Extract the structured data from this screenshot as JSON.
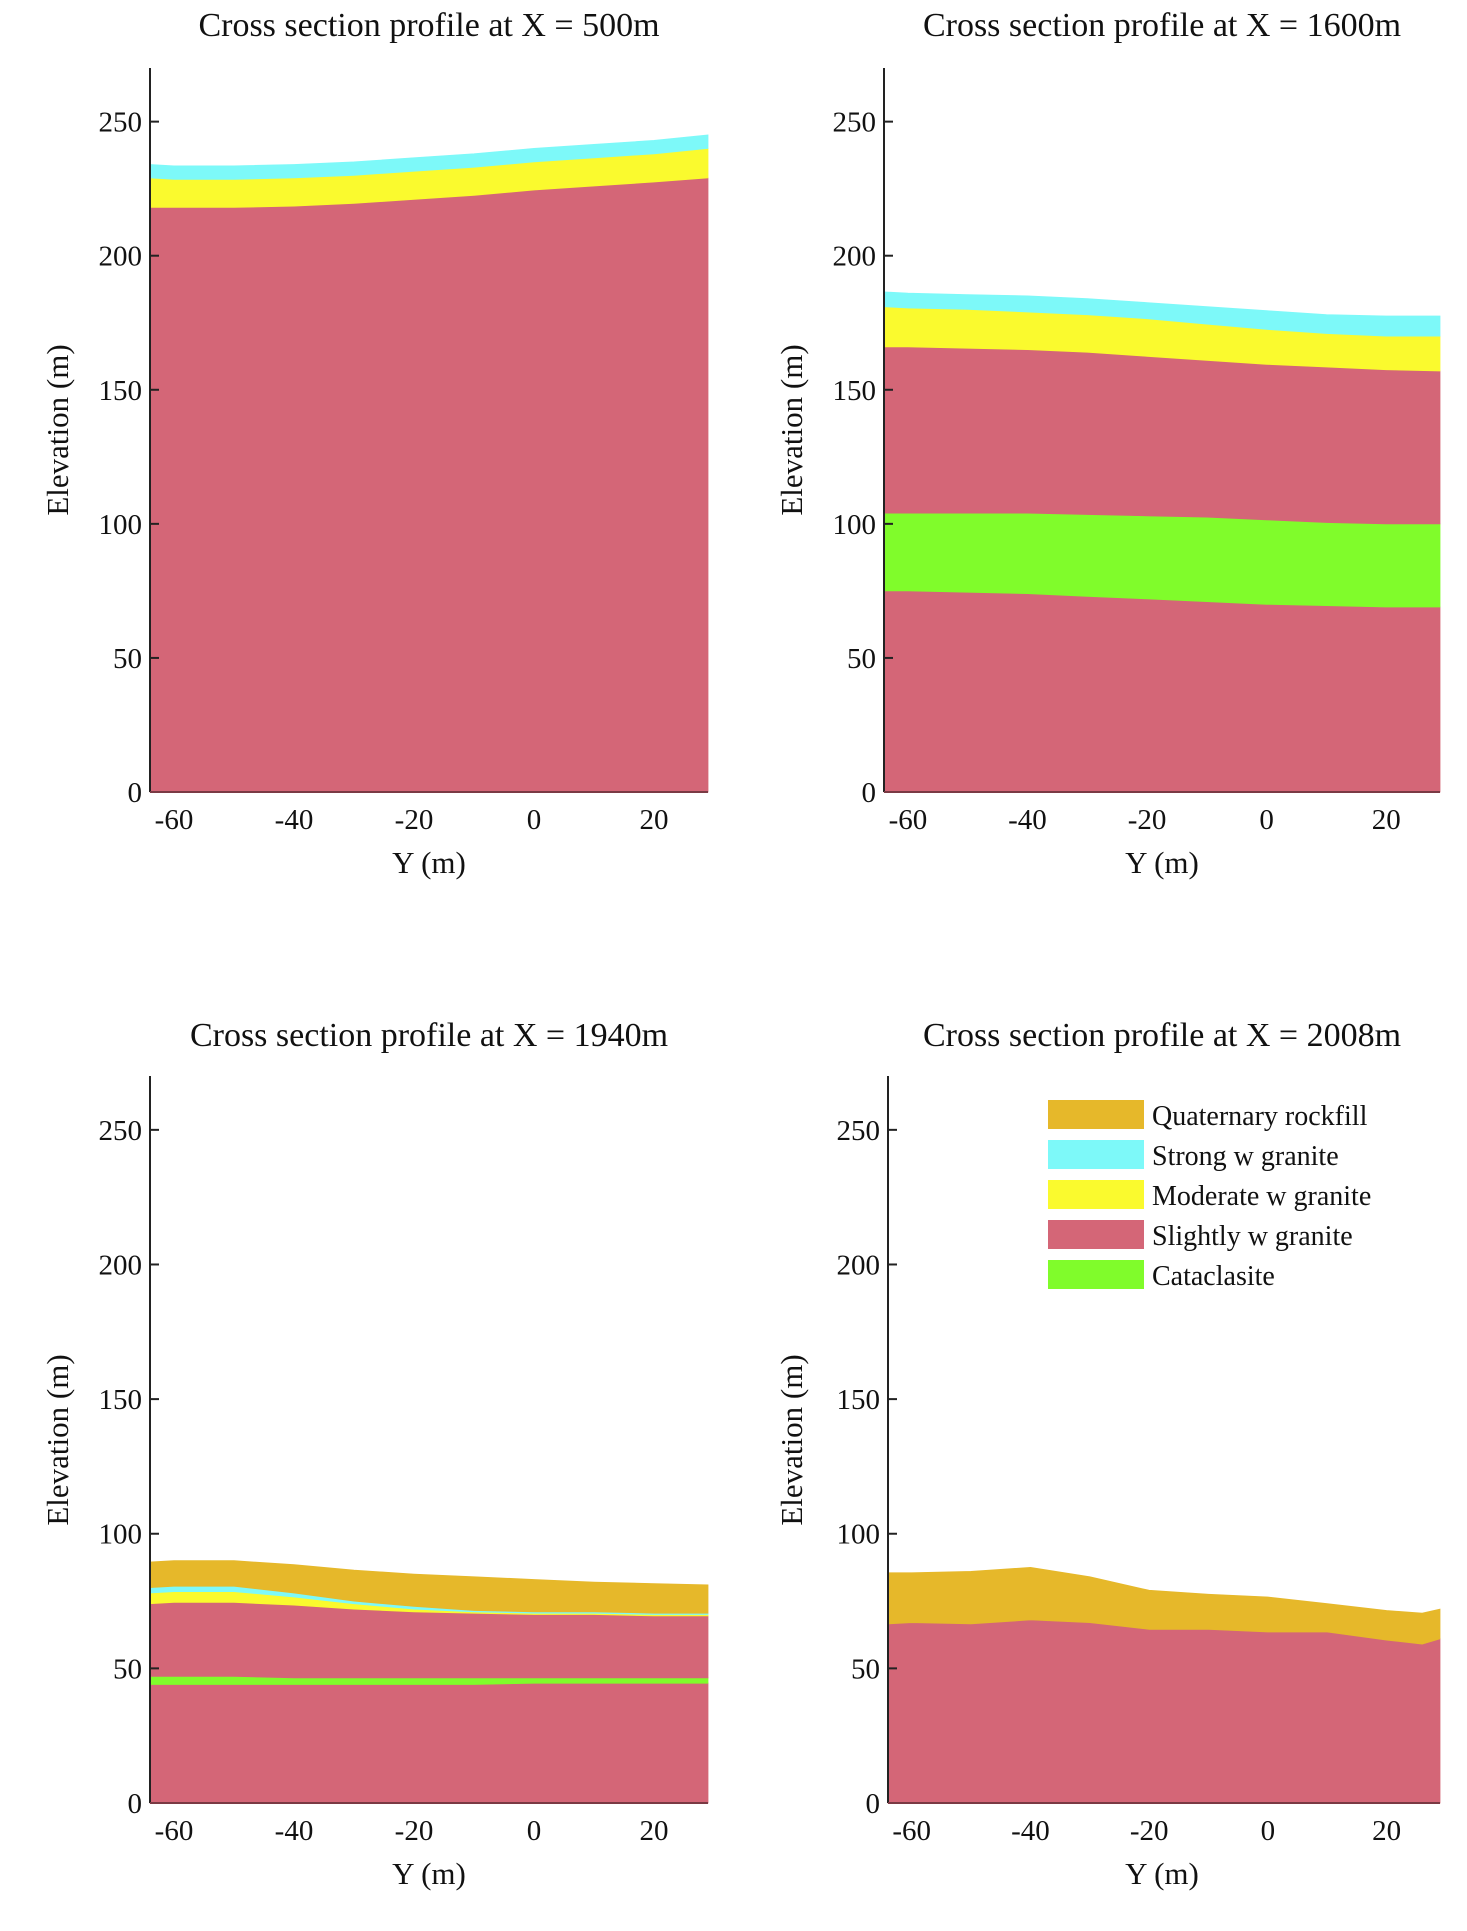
{
  "chart_data": [
    {
      "type": "area",
      "title": "Cross section profile at X = 500m",
      "xlabel": "Y (m)",
      "ylabel": "Elevation (m)",
      "xlim": [
        -64,
        29
      ],
      "ylim": [
        0,
        270
      ],
      "xticks": [
        -60,
        -40,
        -20,
        0,
        20
      ],
      "yticks": [
        0,
        50,
        100,
        150,
        200,
        250
      ],
      "grid": false,
      "x": [
        -64,
        -60,
        -50,
        -40,
        -30,
        -20,
        -10,
        0,
        10,
        20,
        29
      ],
      "layers": [
        {
          "name": "Slightly w granite",
          "bottom": [
            0,
            0,
            0,
            0,
            0,
            0,
            0,
            0,
            0,
            0,
            0
          ],
          "top": [
            218,
            218,
            218,
            218.5,
            219.5,
            221,
            222.5,
            224.5,
            226,
            227.5,
            229
          ]
        },
        {
          "name": "Moderate w granite",
          "bottom": [
            218,
            218,
            218,
            218.5,
            219.5,
            221,
            222.5,
            224.5,
            226,
            227.5,
            229
          ],
          "top": [
            229,
            228.5,
            228.5,
            229,
            230,
            231.5,
            233,
            235,
            236.5,
            238,
            240
          ]
        },
        {
          "name": "Strong w granite",
          "bottom": [
            229,
            228.5,
            228.5,
            229,
            230,
            231.5,
            233,
            235,
            236.5,
            238,
            240
          ],
          "top": [
            234,
            233.5,
            233.5,
            234,
            235,
            236.5,
            238,
            240,
            241.5,
            243,
            245
          ]
        }
      ]
    },
    {
      "type": "area",
      "title": "Cross section profile at X = 1600m",
      "xlabel": "Y (m)",
      "ylabel": "Elevation (m)",
      "xlim": [
        -64,
        29
      ],
      "ylim": [
        0,
        270
      ],
      "xticks": [
        -60,
        -40,
        -20,
        0,
        20
      ],
      "yticks": [
        0,
        50,
        100,
        150,
        200,
        250
      ],
      "grid": false,
      "x": [
        -64,
        -60,
        -50,
        -40,
        -30,
        -20,
        -10,
        0,
        10,
        20,
        29
      ],
      "layers": [
        {
          "name": "Slightly w granite",
          "bottom": [
            0,
            0,
            0,
            0,
            0,
            0,
            0,
            0,
            0,
            0,
            0
          ],
          "top": [
            75,
            75,
            74.5,
            74,
            73,
            72,
            71,
            70,
            69.5,
            69,
            69
          ]
        },
        {
          "name": "Cataclasite",
          "bottom": [
            75,
            75,
            74.5,
            74,
            73,
            72,
            71,
            70,
            69.5,
            69,
            69
          ],
          "top": [
            104,
            104,
            104,
            104,
            103.5,
            103,
            102.5,
            101.5,
            100.5,
            100,
            100
          ]
        },
        {
          "name": "Slightly w granite",
          "bottom": [
            104,
            104,
            104,
            104,
            103.5,
            103,
            102.5,
            101.5,
            100.5,
            100,
            100
          ],
          "top": [
            166,
            166,
            165.5,
            165,
            164,
            162.5,
            161,
            159.5,
            158.5,
            157.5,
            157
          ]
        },
        {
          "name": "Moderate w granite",
          "bottom": [
            166,
            166,
            165.5,
            165,
            164,
            162.5,
            161,
            159.5,
            158.5,
            157.5,
            157
          ],
          "top": [
            181,
            180.5,
            180,
            179,
            178,
            176.5,
            174.5,
            172.5,
            171,
            170,
            170
          ]
        },
        {
          "name": "Strong w granite",
          "bottom": [
            181,
            180.5,
            180,
            179,
            178,
            176.5,
            174.5,
            172.5,
            171,
            170,
            170
          ],
          "top": [
            186.5,
            186,
            185.5,
            185,
            184,
            182.5,
            181,
            179.5,
            178,
            177.5,
            177.5
          ]
        }
      ]
    },
    {
      "type": "area",
      "title": "Cross section profile at X = 1940m",
      "xlabel": "Y (m)",
      "ylabel": "Elevation (m)",
      "xlim": [
        -64,
        29
      ],
      "ylim": [
        0,
        270
      ],
      "xticks": [
        -60,
        -40,
        -20,
        0,
        20
      ],
      "yticks": [
        0,
        50,
        100,
        150,
        200,
        250
      ],
      "grid": false,
      "x": [
        -64,
        -60,
        -50,
        -40,
        -30,
        -20,
        -10,
        0,
        10,
        20,
        29
      ],
      "layers": [
        {
          "name": "Slightly w granite",
          "bottom": [
            0,
            0,
            0,
            0,
            0,
            0,
            0,
            0,
            0,
            0,
            0
          ],
          "top": [
            44,
            44,
            44,
            44,
            44,
            44,
            44,
            44.5,
            44.5,
            44.5,
            44.5
          ]
        },
        {
          "name": "Cataclasite",
          "bottom": [
            44,
            44,
            44,
            44,
            44,
            44,
            44,
            44.5,
            44.5,
            44.5,
            44.5
          ],
          "top": [
            47,
            47,
            47,
            46.5,
            46.5,
            46.5,
            46.5,
            46.5,
            46.5,
            46.5,
            46.5
          ]
        },
        {
          "name": "Slightly w granite",
          "bottom": [
            47,
            47,
            47,
            46.5,
            46.5,
            46.5,
            46.5,
            46.5,
            46.5,
            46.5,
            46.5
          ],
          "top": [
            74,
            74.5,
            74.5,
            73.5,
            72,
            71,
            70.5,
            70,
            70,
            69.5,
            69.5
          ]
        },
        {
          "name": "Moderate w granite",
          "bottom": [
            74,
            74.5,
            74.5,
            73.5,
            72,
            71,
            70.5,
            70,
            70,
            69.5,
            69.5
          ],
          "top": [
            78,
            78.5,
            78.5,
            76.5,
            74,
            72,
            71,
            70.5,
            70.5,
            70,
            70
          ]
        },
        {
          "name": "Strong w granite",
          "bottom": [
            78,
            78.5,
            78.5,
            76.5,
            74,
            72,
            71,
            70.5,
            70.5,
            70,
            70
          ],
          "top": [
            80,
            80.5,
            80.5,
            78,
            75,
            73,
            71.5,
            71,
            71,
            70.5,
            70.5
          ]
        },
        {
          "name": "Quaternary rockfill",
          "bottom": [
            80,
            80.5,
            80.5,
            78,
            75,
            73,
            71.5,
            71,
            71,
            70.5,
            70.5
          ],
          "top": [
            89.5,
            90,
            90,
            88.5,
            86.5,
            85,
            84,
            83,
            82,
            81.5,
            81
          ]
        }
      ]
    },
    {
      "type": "area",
      "title": "Cross section profile at X = 2008m",
      "xlabel": "Y (m)",
      "ylabel": "Elevation (m)",
      "xlim": [
        -64,
        29
      ],
      "ylim": [
        0,
        270
      ],
      "xticks": [
        -60,
        -40,
        -20,
        0,
        20
      ],
      "yticks": [
        0,
        50,
        100,
        150,
        200,
        250
      ],
      "grid": false,
      "legend": {
        "position": "top-right",
        "entries": [
          {
            "label": "Quaternary rockfill",
            "color": "#E6B82A"
          },
          {
            "label": "Strong w granite",
            "color": "#7DF9F9"
          },
          {
            "label": "Moderate w granite",
            "color": "#FAFA2E"
          },
          {
            "label": "Slightly w granite",
            "color": "#D46677"
          },
          {
            "label": "Cataclasite",
            "color": "#80FC2B"
          }
        ]
      },
      "x": [
        -64,
        -60,
        -50,
        -40,
        -30,
        -20,
        -10,
        0,
        10,
        20,
        26,
        29
      ],
      "layers": [
        {
          "name": "Slightly w granite",
          "bottom": [
            0,
            0,
            0,
            0,
            0,
            0,
            0,
            0,
            0,
            0,
            0,
            0
          ],
          "top": [
            66.5,
            67,
            66.5,
            68,
            67,
            64.5,
            64.5,
            63.5,
            63.5,
            60.5,
            59,
            61
          ]
        },
        {
          "name": "Quaternary rockfill",
          "bottom": [
            66.5,
            67,
            66.5,
            68,
            67,
            64.5,
            64.5,
            63.5,
            63.5,
            60.5,
            59,
            61
          ],
          "top": [
            85.5,
            85.5,
            86,
            87.5,
            84,
            79,
            77.5,
            76.5,
            74,
            71.5,
            70.5,
            72
          ]
        }
      ]
    }
  ],
  "colors": {
    "Quaternary rockfill": "#E6B82A",
    "Strong w granite": "#7DF9F9",
    "Moderate w granite": "#FAFA2E",
    "Slightly w granite": "#D46677",
    "Cataclasite": "#80FC2B"
  }
}
